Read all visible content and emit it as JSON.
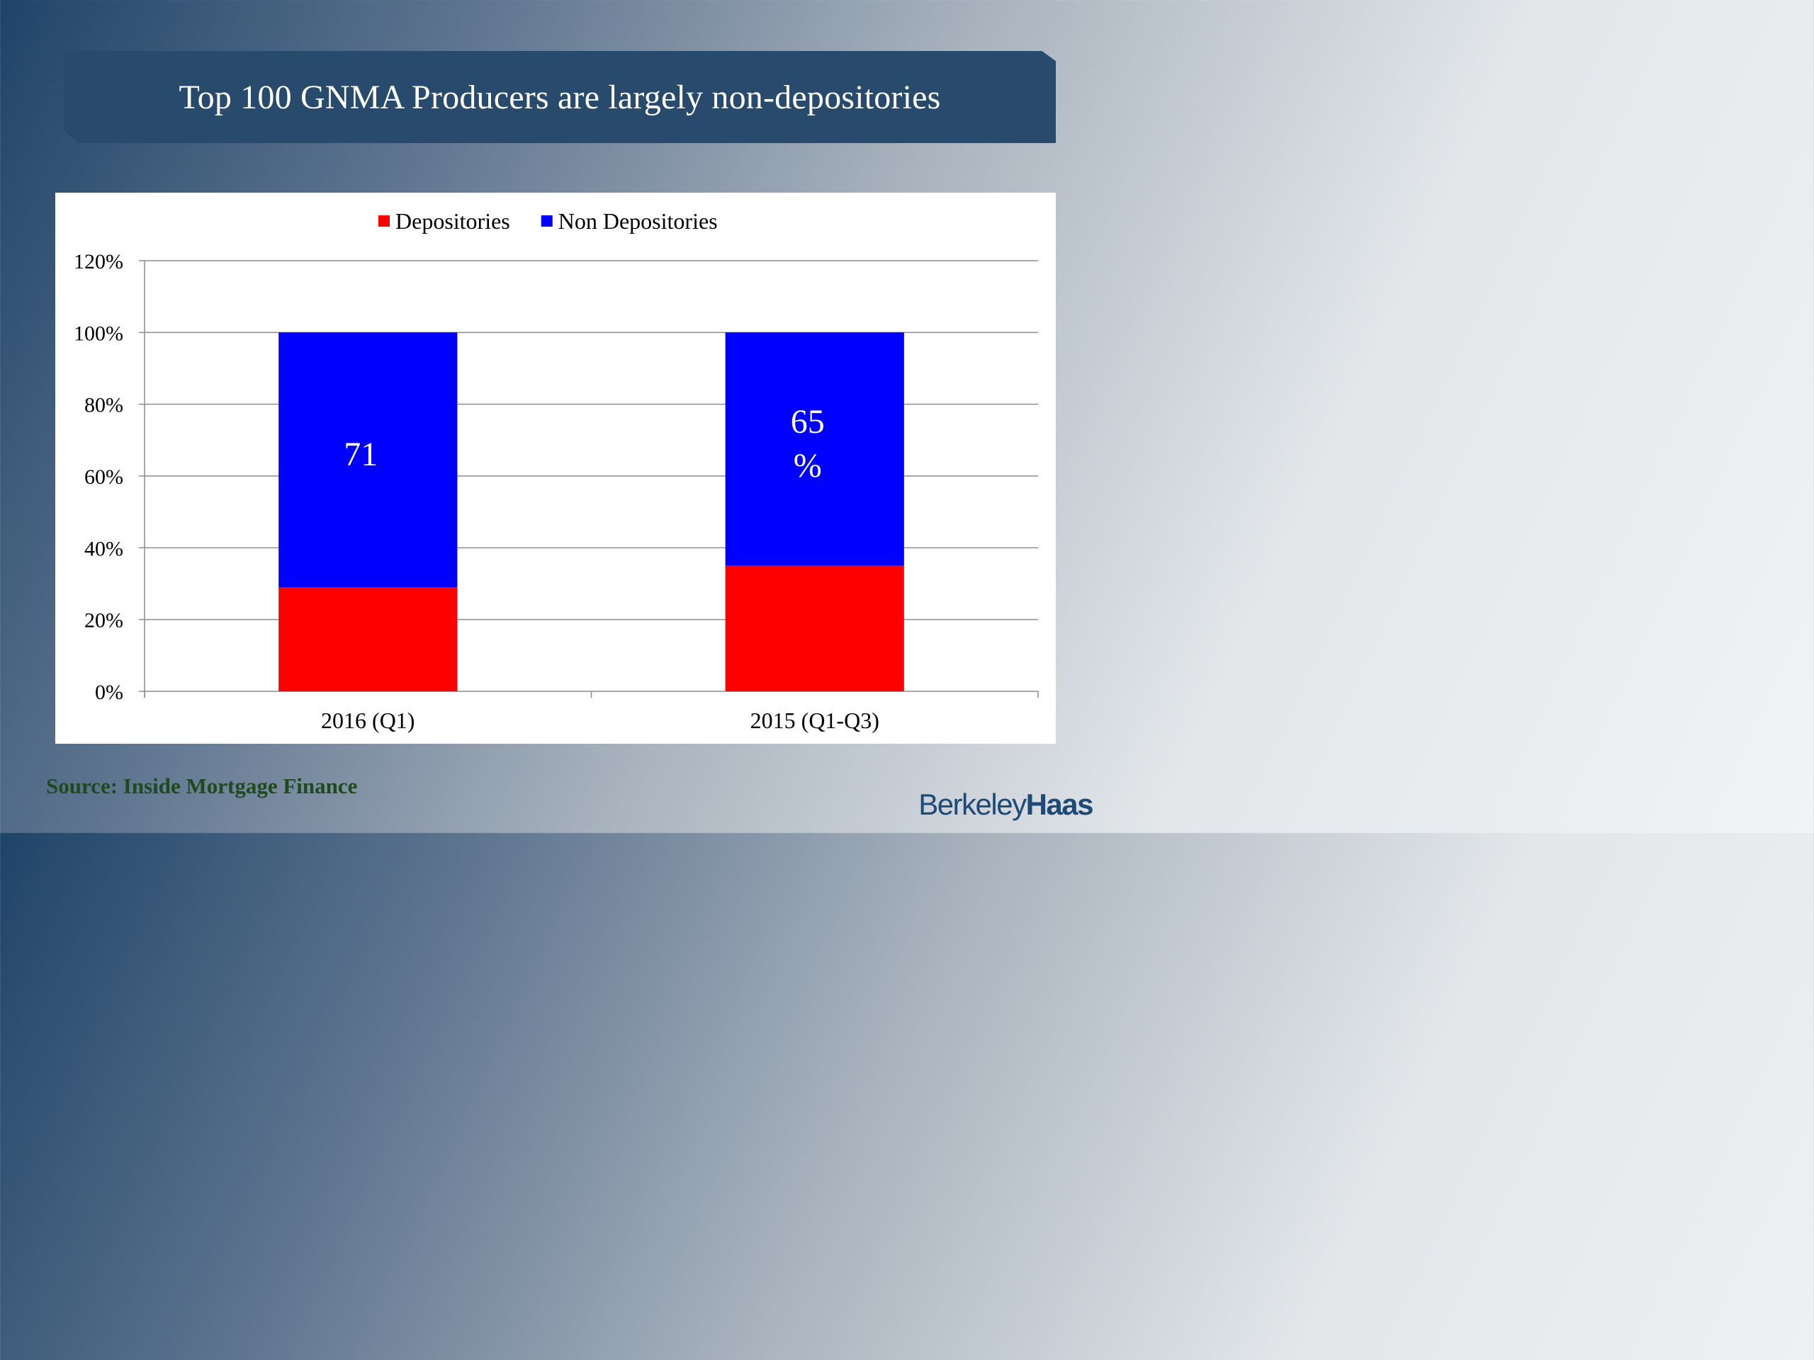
{
  "slide": {
    "title": "Top 100 GNMA Producers are largely non-depositories",
    "source": "Source: Inside Mortgage Finance",
    "logo": {
      "part1": "Berkeley",
      "part2": "Haas",
      "color": "#1f4a78"
    }
  },
  "chart_data": {
    "type": "bar",
    "stacked": true,
    "categories": [
      "2016 (Q1)",
      "2015 (Q1-Q3)"
    ],
    "series": [
      {
        "name": "Depositories",
        "color": "#ff0000",
        "values": [
          29,
          35
        ]
      },
      {
        "name": "Non Depositories",
        "color": "#0000ff",
        "values": [
          71,
          65
        ]
      }
    ],
    "data_labels": [
      {
        "series": "Non Depositories",
        "category": "2016 (Q1)",
        "lines": [
          "71"
        ]
      },
      {
        "series": "Non Depositories",
        "category": "2015 (Q1-Q3)",
        "lines": [
          "65",
          "%"
        ]
      }
    ],
    "y_ticks": [
      "0%",
      "20%",
      "40%",
      "60%",
      "80%",
      "100%",
      "120%"
    ],
    "ylim": [
      0,
      120
    ],
    "y_unit": "%",
    "grid": true,
    "legend_position": "top-center",
    "title": "",
    "xlabel": "",
    "ylabel": ""
  }
}
